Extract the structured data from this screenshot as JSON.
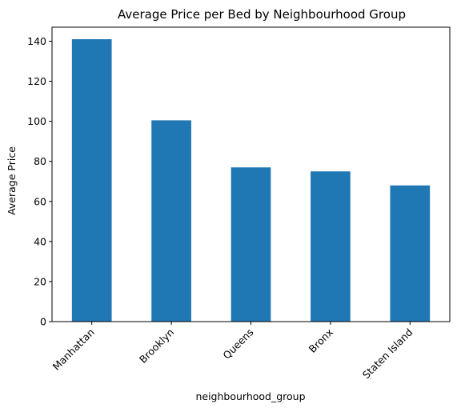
{
  "chart_data": {
    "type": "bar",
    "title": "Average Price per Bed by Neighbourhood Group",
    "xlabel": "neighbourhood_group",
    "ylabel": "Average Price",
    "categories": [
      "Manhattan",
      "Brooklyn",
      "Queens",
      "Bronx",
      "Staten Island"
    ],
    "values": [
      141,
      100.5,
      77,
      75,
      68
    ],
    "ylim": [
      0,
      147
    ],
    "yticks": [
      0,
      20,
      40,
      60,
      80,
      100,
      120,
      140
    ],
    "grid": false,
    "legend": "none",
    "bar_color": "#1f77b4"
  }
}
